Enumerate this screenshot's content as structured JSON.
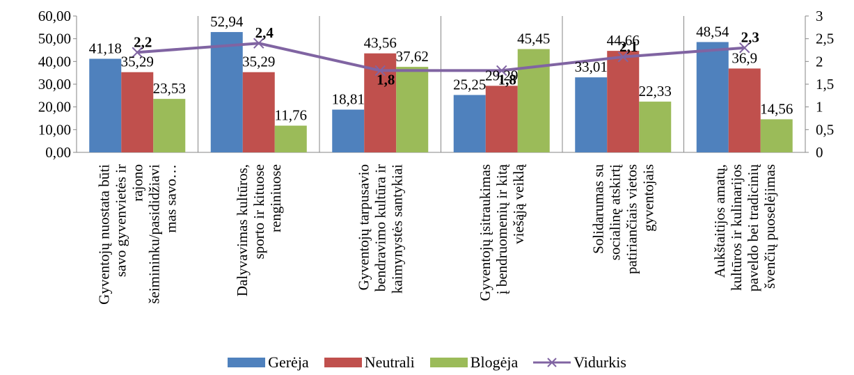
{
  "chart_data": {
    "type": "bar",
    "categories": [
      "Gyventojų nuostata būti savo gyvenvietės ir rajono šeimininku/pasididžiavimas savo…",
      "Dalyvavimas kultūros, sporto ir kituose renginiuose",
      "Gyventojų tarpusavio bendravimo kultūra ir kaimynystės santykiai",
      "Gyventojų įsitraukimas į bendruomenių ir kitą viešąją veiklą",
      "Solidarumas su socialinę atskirtį patiriančiais vietos gyventojais",
      "Aukštaitijos amatų, kultūros ir kulinarijos paveldo bei tradicinių švenčių puoselėjimas"
    ],
    "category_lines": [
      [
        "Gyventojų nuostata būti",
        "savo gyvenvietės ir",
        "rajono",
        "šeimininku/pasididžiavi",
        "mas savo…"
      ],
      [
        "Dalyvavimas kultūros,",
        "sporto ir kituose",
        "renginiuose"
      ],
      [
        "Gyventojų tarpusavio",
        "bendravimo kultūra ir",
        "kaimynystės santykiai"
      ],
      [
        "Gyventojų įsitraukimas",
        "į bendruomenių ir kitą",
        "viešąją veiklą"
      ],
      [
        "Solidarumas su",
        "socialinę atskirtį",
        "patiriančiais vietos",
        "gyventojais"
      ],
      [
        "Aukštaitijos amatų,",
        "kultūros ir kulinarijos",
        "paveldo bei tradicinių",
        "švenčių puoselėjimas"
      ]
    ],
    "series": [
      {
        "name": "Gerėja",
        "color": "#4f81bd",
        "values": [
          41.18,
          52.94,
          18.81,
          25.25,
          33.01,
          48.54
        ],
        "labels": [
          "41,18",
          "52,94",
          "18,81",
          "25,25",
          "33,01",
          "48,54"
        ]
      },
      {
        "name": "Neutrali",
        "color": "#c0504d",
        "values": [
          35.29,
          35.29,
          43.56,
          29.29,
          44.66,
          36.9
        ],
        "labels": [
          "35,29",
          "35,29",
          "43,56",
          "29,29",
          "44,66",
          "36,9"
        ]
      },
      {
        "name": "Blogėja",
        "color": "#9bbb59",
        "values": [
          23.53,
          11.76,
          37.62,
          45.45,
          22.33,
          14.56
        ],
        "labels": [
          "23,53",
          "11,76",
          "37,62",
          "45,45",
          "22,33",
          "14,56"
        ]
      }
    ],
    "line_series": {
      "name": "Vidurkis",
      "color": "#8064a2",
      "values": [
        2.2,
        2.4,
        1.8,
        1.8,
        2.1,
        2.3
      ],
      "labels": [
        "2,2",
        "2,4",
        "1,8",
        "1,8",
        "2,1",
        "2,3"
      ],
      "axis": "secondary"
    },
    "ylim": [
      0,
      60
    ],
    "y_ticks": [
      "0,00",
      "10,00",
      "20,00",
      "30,00",
      "40,00",
      "50,00",
      "60,00"
    ],
    "y2lim": [
      0,
      3
    ],
    "y2_ticks": [
      "0",
      "0,5",
      "1",
      "1,5",
      "2",
      "2,5",
      "3"
    ],
    "legend_position": "bottom",
    "grid": false
  },
  "legend": [
    "Gerėja",
    "Neutrali",
    "Blogėja",
    "Vidurkis"
  ]
}
